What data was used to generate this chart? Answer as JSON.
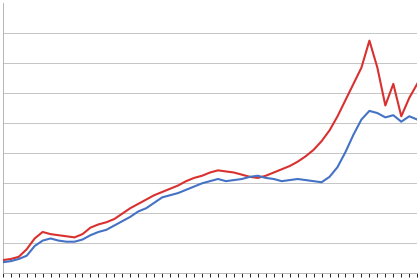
{
  "red_line": [
    1.2,
    1.3,
    1.5,
    2.2,
    3.2,
    3.8,
    3.6,
    3.5,
    3.4,
    3.3,
    3.6,
    4.2,
    4.5,
    4.7,
    5.0,
    5.5,
    6.0,
    6.4,
    6.8,
    7.2,
    7.5,
    7.8,
    8.1,
    8.5,
    8.8,
    9.0,
    9.3,
    9.5,
    9.4,
    9.3,
    9.1,
    8.9,
    8.8,
    9.0,
    9.3,
    9.6,
    9.9,
    10.3,
    10.8,
    11.4,
    12.2,
    13.2,
    14.5,
    16.0,
    17.5,
    19.0,
    21.5,
    19.0,
    15.5,
    17.5,
    14.5,
    16.2,
    17.5
  ],
  "blue_line": [
    1.0,
    1.1,
    1.3,
    1.6,
    2.5,
    3.0,
    3.2,
    3.0,
    2.9,
    2.9,
    3.1,
    3.5,
    3.8,
    4.0,
    4.4,
    4.8,
    5.2,
    5.7,
    6.0,
    6.5,
    7.0,
    7.2,
    7.4,
    7.7,
    8.0,
    8.3,
    8.5,
    8.7,
    8.5,
    8.6,
    8.7,
    8.9,
    9.0,
    8.8,
    8.7,
    8.5,
    8.6,
    8.7,
    8.6,
    8.5,
    8.4,
    8.9,
    9.8,
    11.2,
    12.8,
    14.2,
    15.0,
    14.8,
    14.4,
    14.6,
    14.0,
    14.5,
    14.2
  ],
  "red_color": "#d93030",
  "blue_color": "#4472c4",
  "line_width": 1.5,
  "bg_color": "#ffffff",
  "grid_color": "#bbbbbb",
  "ylim": [
    0,
    25
  ],
  "n_points": 53
}
